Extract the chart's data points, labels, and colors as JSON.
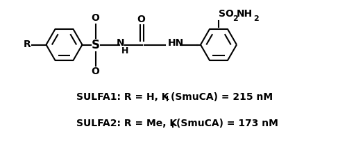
{
  "background_color": "#ffffff",
  "text_color": "#000000",
  "fig_width": 5.0,
  "fig_height": 2.12,
  "dpi": 100,
  "sulfa1": "SULFA1: R = H, K",
  "sulfa1_sub": "I",
  "sulfa1_rest": "(SmuCA) = 215 nM",
  "sulfa2": "SULFA2: R = Me, K",
  "sulfa2_sub": "I",
  "sulfa2_rest": "(SmuCA) = 173 nM",
  "font_size_label": 10,
  "lw": 1.5,
  "ring_r": 0.52,
  "xlim": [
    0,
    10
  ],
  "ylim": [
    0,
    4.24
  ]
}
